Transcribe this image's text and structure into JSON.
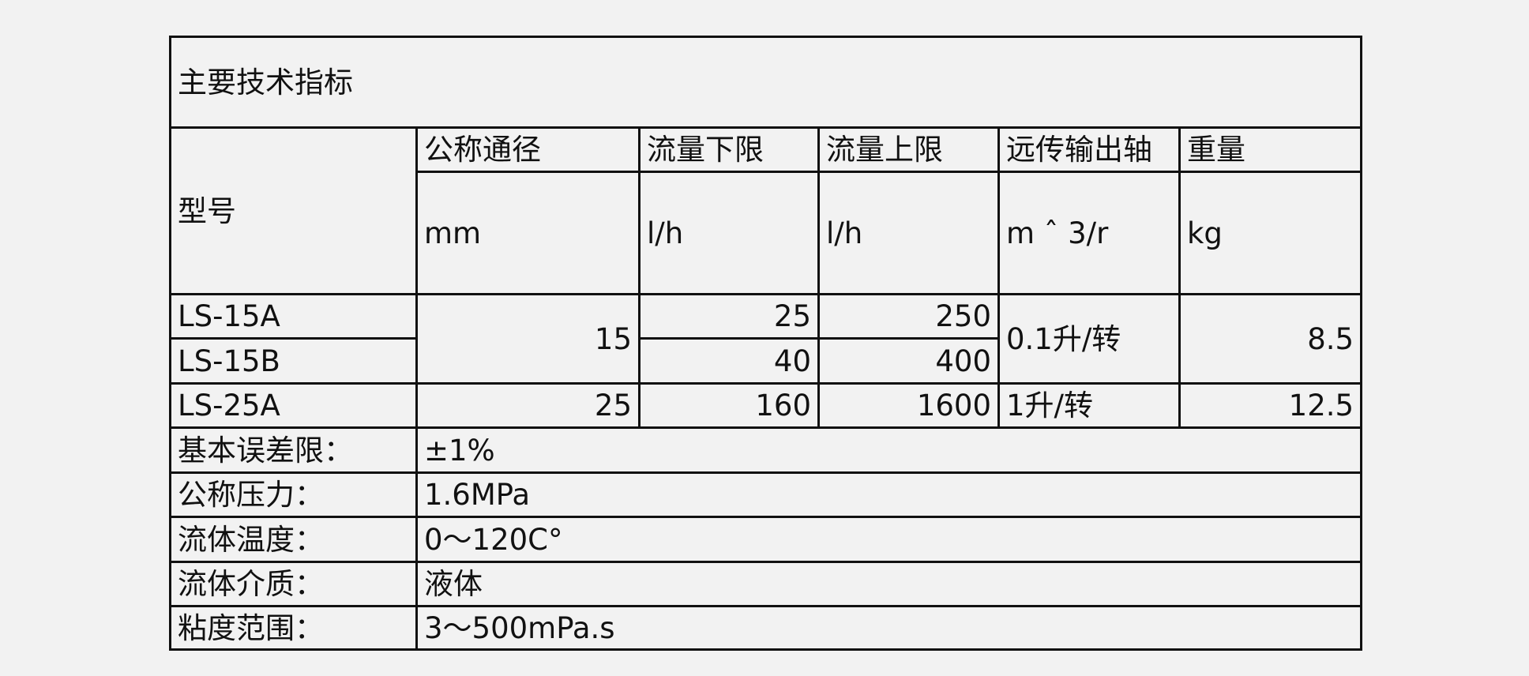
{
  "title": "主要技术指标",
  "header": {
    "model": "型号",
    "columns": [
      {
        "name": "公称通径",
        "unit": "mm"
      },
      {
        "name": "流量下限",
        "unit": "l/h"
      },
      {
        "name": "流量上限",
        "unit": "l/h"
      },
      {
        "name": "远传输出轴",
        "unit": "m ˆ 3/r"
      },
      {
        "name": "重量",
        "unit": "kg"
      }
    ]
  },
  "rows": [
    {
      "model": "LS-15A",
      "diameter": "15",
      "flow_min": "25",
      "flow_max": "250",
      "output": "0.1升/转",
      "weight": "8.5"
    },
    {
      "model": "LS-15B",
      "flow_min": "40",
      "flow_max": "400"
    },
    {
      "model": "LS-25A",
      "diameter": "25",
      "flow_min": "160",
      "flow_max": "1600",
      "output": "1升/转",
      "weight": "12.5"
    }
  ],
  "specs": [
    {
      "label": "基本误差限：",
      "value": "±1%"
    },
    {
      "label": "公称压力：",
      "value": "1.6MPa"
    },
    {
      "label": "流体温度：",
      "value": "0～120C°"
    },
    {
      "label": "流体介质：",
      "value": "液体"
    },
    {
      "label": "粘度范围：",
      "value": "3～500mPa.s"
    }
  ]
}
